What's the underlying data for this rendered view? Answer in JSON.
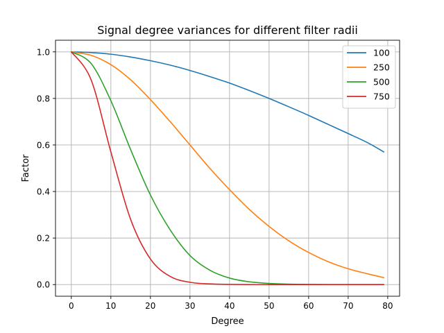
{
  "chart_data": {
    "type": "line",
    "title": "Signal degree variances for different filter radii",
    "xlabel": "Degree",
    "ylabel": "Factor",
    "xlim": [
      -4.0,
      83.0
    ],
    "ylim": [
      -0.05,
      1.05
    ],
    "xticks": [
      0,
      10,
      20,
      30,
      40,
      50,
      60,
      70,
      80
    ],
    "yticks": [
      0.0,
      0.2,
      0.4,
      0.6,
      0.8,
      1.0
    ],
    "ytick_labels": [
      "0.0",
      "0.2",
      "0.4",
      "0.6",
      "0.8",
      "1.0"
    ],
    "grid": true,
    "legend_position": "top-right",
    "x": [
      0,
      5,
      10,
      15,
      20,
      25,
      30,
      35,
      40,
      45,
      50,
      55,
      60,
      65,
      70,
      75,
      79
    ],
    "series": [
      {
        "name": "100",
        "color": "#1f77b4",
        "values": [
          1.0,
          0.997,
          0.99,
          0.978,
          0.962,
          0.943,
          0.92,
          0.894,
          0.866,
          0.834,
          0.8,
          0.764,
          0.727,
          0.688,
          0.649,
          0.609,
          0.57
        ]
      },
      {
        "name": "250",
        "color": "#ff7f0e",
        "values": [
          1.0,
          0.985,
          0.945,
          0.88,
          0.795,
          0.7,
          0.6,
          0.5,
          0.408,
          0.323,
          0.25,
          0.188,
          0.138,
          0.098,
          0.068,
          0.046,
          0.03
        ]
      },
      {
        "name": "500",
        "color": "#2ca02c",
        "values": [
          1.0,
          0.95,
          0.79,
          0.58,
          0.385,
          0.235,
          0.125,
          0.062,
          0.028,
          0.012,
          0.005,
          0.002,
          0.001,
          0.0,
          0.0,
          0.0,
          0.0
        ]
      },
      {
        "name": "750",
        "color": "#d62728",
        "values": [
          1.0,
          0.88,
          0.57,
          0.28,
          0.11,
          0.035,
          0.01,
          0.003,
          0.001,
          0.0,
          0.0,
          0.0,
          0.0,
          0.0,
          0.0,
          0.0,
          0.0
        ]
      }
    ]
  }
}
